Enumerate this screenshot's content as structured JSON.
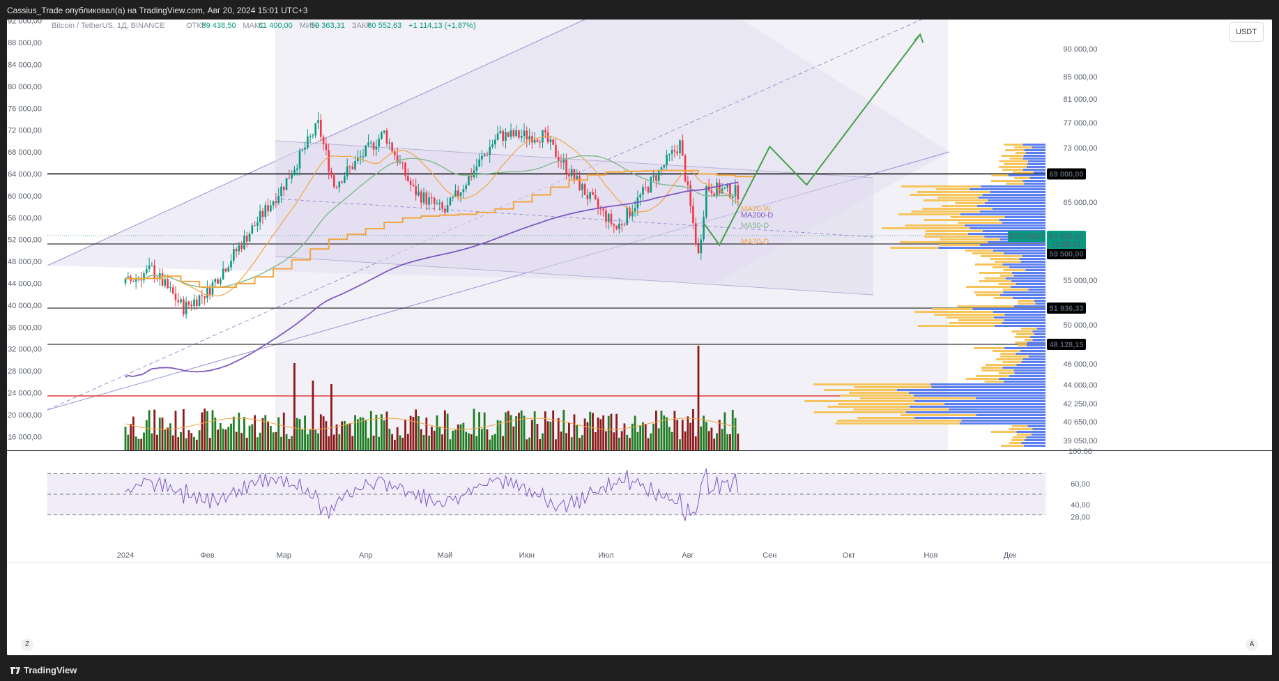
{
  "header": {
    "title": "Cassius_Trade опубликовал(а) на TradingView.com, Авг 20, 2024 15:01 UTC+3"
  },
  "legend": {
    "symbol": "Bitcoin / TetherUS, 1Д, BINANCE",
    "open_label": "ОТКР",
    "open": "59 438,50",
    "high_label": "МАКС",
    "high": "61 400,00",
    "low_label": "МИН",
    "low": "59 363,31",
    "close_label": "ЗАКР",
    "close": "60 552,63",
    "change": "+1 114,13 (+1,87%)"
  },
  "currency_button": "USDT",
  "badges": {
    "symbol": "BTCUSDT",
    "price": "60 552,63",
    "countdown": "11:58:33",
    "level_69000": "69 000,00",
    "level_59500": "59 500,00",
    "level_51936": "51 936,33",
    "level_48128": "48 128,15"
  },
  "ma_labels": {
    "ma20w": "MA20-W",
    "ma200d": "MA200-D",
    "ma50d": "MA50-D",
    "ma20d": "MA20-D"
  },
  "left_axis": [
    "92 000,00",
    "88 000,00",
    "84 000,00",
    "80 000,00",
    "76 000,00",
    "72 000,00",
    "68 000,00",
    "64 000,00",
    "60 000,00",
    "56 000,00",
    "52 000,00",
    "48 000,00",
    "44 000,00",
    "40 000,00",
    "36 000,00",
    "32 000,00",
    "28 000,00",
    "24 000,00",
    "20 000,00",
    "16 000,00"
  ],
  "right_axis": [
    "90 000,00",
    "85 000,00",
    "81 000,00",
    "77 000,00",
    "73 000,00",
    "65 000,00",
    "55 000,00",
    "50 000,00",
    "46 000,00",
    "44 000,00",
    "42 250,00",
    "40 650,00",
    "39 050,00",
    "100,00"
  ],
  "rsi_axis": [
    "60,00",
    "40,00",
    "28,00"
  ],
  "x_axis": [
    "2024",
    "Фев",
    "Мар",
    "Апр",
    "Май",
    "Июн",
    "Июл",
    "Авг",
    "Сен",
    "Окт",
    "Ноя",
    "Дек"
  ],
  "corner_left": "Z",
  "corner_right": "A",
  "footer": {
    "brand": "TradingView"
  },
  "colors": {
    "up": "#089981",
    "down": "#f23645",
    "vol_up": "#1e7d22",
    "vol_down": "#8b1a1a",
    "ma20d": "#f2a540",
    "ma50d": "#81b88a",
    "ma200d": "#7e57c2",
    "ma20w": "#f2a540",
    "projection": "#43a047",
    "channel": "#9c8fd4",
    "rsi": "#7e57c2"
  },
  "chart_data": {
    "type": "candlestick",
    "symbol": "Bitcoin / TetherUS",
    "timeframe": "1Д",
    "horizontal_levels": [
      69000,
      59500,
      51936.33,
      48128.15,
      42500
    ],
    "last_price": 60552.63,
    "price_path": [
      [
        "2024-01-01",
        44000
      ],
      [
        "2024-01-11",
        46500
      ],
      [
        "2024-01-23",
        39500
      ],
      [
        "2024-02-01",
        42500
      ],
      [
        "2024-02-15",
        52000
      ],
      [
        "2024-03-01",
        62000
      ],
      [
        "2024-03-14",
        73000
      ],
      [
        "2024-03-20",
        62000
      ],
      [
        "2024-04-08",
        71500
      ],
      [
        "2024-04-19",
        61000
      ],
      [
        "2024-05-01",
        57000
      ],
      [
        "2024-05-21",
        71000
      ],
      [
        "2024-06-07",
        71000
      ],
      [
        "2024-06-24",
        60000
      ],
      [
        "2024-07-05",
        54000
      ],
      [
        "2024-07-29",
        69500
      ],
      [
        "2024-08-05",
        49000
      ],
      [
        "2024-08-08",
        61500
      ],
      [
        "2024-08-20",
        60552.63
      ]
    ],
    "projection": [
      [
        "2024-08-07",
        55000
      ],
      [
        "2024-08-13",
        51000
      ],
      [
        "2024-09-01",
        69000
      ],
      [
        "2024-09-15",
        62000
      ],
      [
        "2024-10-28",
        89500
      ]
    ],
    "rsi": {
      "upper": 70,
      "middle": 50,
      "lower": 30
    }
  }
}
